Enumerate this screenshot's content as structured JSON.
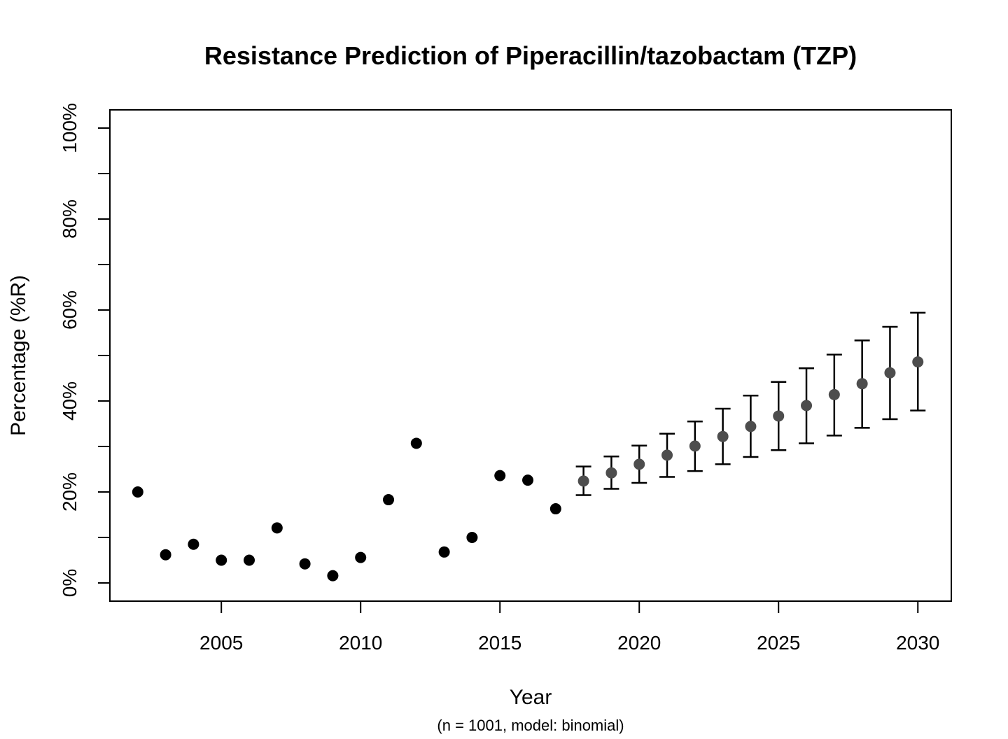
{
  "chart_data": {
    "type": "scatter",
    "title": "Resistance Prediction of Piperacillin/tazobactam (TZP)",
    "subtitle": "(n = 1001, model: binomial)",
    "xlabel": "Year",
    "ylabel": "Percentage (%R)",
    "xlim": [
      2001,
      2031.2
    ],
    "ylim": [
      -0.04,
      1.04
    ],
    "x_ticks": [
      2005,
      2010,
      2015,
      2020,
      2025,
      2030
    ],
    "x_tick_labels": [
      "2005",
      "2010",
      "2015",
      "2020",
      "2025",
      "2030"
    ],
    "y_ticks": [
      0,
      0.1,
      0.2,
      0.3,
      0.4,
      0.5,
      0.6,
      0.7,
      0.8,
      0.9,
      1.0
    ],
    "y_tick_labels": [
      "0%",
      "",
      "20%",
      "",
      "40%",
      "",
      "60%",
      "",
      "80%",
      "",
      "100%"
    ],
    "grid": false,
    "colors": {
      "observed": "#000000",
      "predicted": "#4d4d4d",
      "errorbar": "#000000"
    },
    "series": [
      {
        "type": "observed",
        "x": [
          2002,
          2003,
          2004,
          2005,
          2006,
          2007,
          2008,
          2009,
          2010,
          2011,
          2012,
          2013,
          2014,
          2015,
          2016,
          2017
        ],
        "y": [
          0.2,
          0.062,
          0.085,
          0.05,
          0.05,
          0.121,
          0.042,
          0.016,
          0.056,
          0.183,
          0.307,
          0.068,
          0.1,
          0.236,
          0.226,
          0.163
        ]
      },
      {
        "type": "predicted",
        "x": [
          2018,
          2019,
          2020,
          2021,
          2022,
          2023,
          2024,
          2025,
          2026,
          2027,
          2028,
          2029,
          2030
        ],
        "y": [
          0.224,
          0.242,
          0.261,
          0.281,
          0.301,
          0.322,
          0.344,
          0.367,
          0.39,
          0.414,
          0.438,
          0.462,
          0.486
        ],
        "lower": [
          0.193,
          0.207,
          0.22,
          0.233,
          0.246,
          0.261,
          0.277,
          0.292,
          0.307,
          0.324,
          0.341,
          0.36,
          0.379
        ],
        "upper": [
          0.256,
          0.278,
          0.302,
          0.328,
          0.355,
          0.383,
          0.412,
          0.442,
          0.472,
          0.502,
          0.533,
          0.563,
          0.594
        ]
      }
    ]
  }
}
